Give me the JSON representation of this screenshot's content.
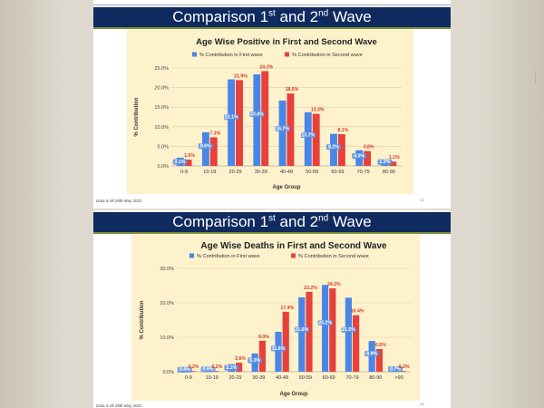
{
  "slides": [
    {
      "heading": {
        "prefix": "Comparison 1",
        "sup1": "st",
        "mid": " and 2",
        "sup2": "nd",
        "suffix": " Wave"
      },
      "footnote": "Data is till 28th May 2021",
      "page_number": "11"
    },
    {
      "heading": {
        "prefix": "Comparison 1",
        "sup1": "st",
        "mid": " and 2",
        "sup2": "nd",
        "suffix": " Wave"
      },
      "footnote": "Data is till 28th May 2021",
      "page_number": "12"
    }
  ],
  "colors": {
    "first_wave": "#4a86e8",
    "second_wave": "#e8403a",
    "second_label": "#d9391f",
    "first_label": "#ffffff",
    "panel": "#fdf2cc",
    "band": "#0f2a5f",
    "accent_line": "#7b8f3a"
  },
  "chart_data": [
    {
      "type": "bar",
      "title": "Age Wise Positive in First and Second Wave",
      "xlabel": "Age Group",
      "ylabel": "% Contribution",
      "categories": [
        "0-9",
        "10-19",
        "20-29",
        "30-39",
        "40-49",
        "50-59",
        "60-69",
        "70-79",
        "80-90"
      ],
      "series": [
        {
          "name": "% Contribution in First wave",
          "values": [
            2.1,
            8.6,
            22.1,
            23.4,
            16.7,
            13.7,
            8.2,
            4.0,
            1.2
          ],
          "labels": [
            "2.1%",
            "8.6%",
            "22.1%",
            "23.4%",
            "16.7%",
            "13.7%",
            "8.2%",
            "4.0%",
            "1.2%"
          ]
        },
        {
          "name": "% Contribution in Second wave",
          "values": [
            1.6,
            7.3,
            21.9,
            24.2,
            18.5,
            13.3,
            8.1,
            3.8,
            1.1
          ],
          "labels": [
            "1.6%",
            "7.3%",
            "21.9%",
            "24.2%",
            "18.5%",
            "13.3%",
            "8.1%",
            "3.8%",
            "1.1%"
          ]
        }
      ],
      "yticks": [
        "0.0%",
        "5.0%",
        "10.0%",
        "15.0%",
        "20.0%",
        "25.0%"
      ],
      "ylim": [
        0,
        25
      ],
      "grid": true,
      "legend": "top"
    },
    {
      "type": "bar",
      "title": "Age Wise Deaths in First and Second Wave",
      "xlabel": "Age Group",
      "ylabel": "% Contribution",
      "categories": [
        "0-9",
        "10-19",
        "20-29",
        "30-39",
        "40-49",
        "50-59",
        "60-69",
        "70-79",
        "80-90",
        ">90"
      ],
      "series": [
        {
          "name": "% Contribution in First wave",
          "values": [
            0.4,
            0.6,
            2.2,
            5.3,
            11.6,
            21.6,
            25.2,
            21.5,
            8.9,
            0.7
          ],
          "labels": [
            "0.4%",
            "0.6%",
            "2.2%",
            "5.3%",
            "11.6%",
            "21.6%",
            "25.2%",
            "21.5%",
            "8.9%",
            "0.7%"
          ]
        },
        {
          "name": "% Contribution in Second wave",
          "values": [
            0.2,
            0.2,
            2.6,
            9.0,
            17.4,
            23.2,
            24.2,
            16.4,
            6.6,
            0.2
          ],
          "labels": [
            "0.2%",
            "0.2%",
            "2.6%",
            "9.0%",
            "17.4%",
            "23.2%",
            "24.2%",
            "16.4%",
            "6.6%",
            "0.2%"
          ]
        }
      ],
      "yticks": [
        "0.0%",
        "10.0%",
        "20.0%",
        "30.0%"
      ],
      "ylim": [
        0,
        30
      ],
      "grid": true,
      "legend": "top"
    }
  ]
}
